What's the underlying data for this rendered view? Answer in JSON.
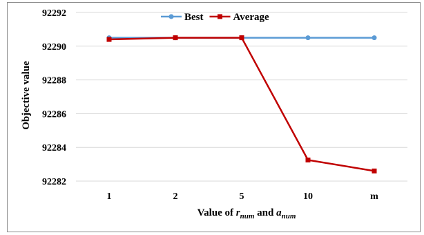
{
  "chart_data": {
    "type": "line",
    "categories": [
      "1",
      "2",
      "5",
      "10",
      "m"
    ],
    "series": [
      {
        "name": "Best",
        "color": "#5b9bd5",
        "marker": "circle",
        "values": [
          92290.5,
          92290.5,
          92290.5,
          92290.5,
          92290.5
        ]
      },
      {
        "name": "Average",
        "color": "#c00000",
        "marker": "square",
        "values": [
          92290.4,
          92290.5,
          92290.5,
          92283.25,
          92282.6
        ]
      }
    ],
    "ylabel": "Objective value",
    "xlabel": {
      "prefix": "Value of ",
      "var1": "r",
      "sub1": "num",
      "middle": " and ",
      "var2": "a",
      "sub2": "num"
    },
    "ylim": [
      92282,
      92292
    ],
    "yticks": [
      92282,
      92284,
      92286,
      92288,
      92290,
      92292
    ],
    "grid": true,
    "legend": "top-center"
  }
}
